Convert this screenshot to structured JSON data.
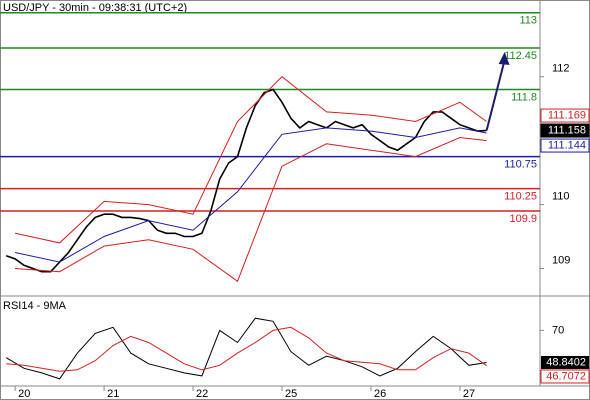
{
  "chart_data": [
    {
      "type": "price",
      "title": "USD/JPY - 30min - 09:38:31 (UTC+2)",
      "ylim": [
        108.57,
        113.2
      ],
      "yticks": [
        109,
        110,
        112
      ],
      "xlim": [
        -0.17,
        5.9
      ],
      "xticks": [
        {
          "value": 0,
          "label": "20"
        },
        {
          "value": 1,
          "label": "21"
        },
        {
          "value": 2,
          "label": "22"
        },
        {
          "value": 3,
          "label": "25"
        },
        {
          "value": 4,
          "label": "26"
        },
        {
          "value": 5,
          "label": "27"
        }
      ],
      "levels": [
        {
          "value": 113,
          "color": "#1f8a1f"
        },
        {
          "value": 112.45,
          "color": "#1f8a1f"
        },
        {
          "value": 111.8,
          "color": "#1f8a1f"
        },
        {
          "value": 110.75,
          "color": "#1c1ca8"
        },
        {
          "value": 110.25,
          "color": "#d42020"
        },
        {
          "value": 109.9,
          "color": "#d42020"
        }
      ],
      "series": [
        {
          "name": "price",
          "color": "#000000",
          "x": [
            -0.1,
            0,
            0.1,
            0.2,
            0.3,
            0.4,
            0.5,
            0.6,
            0.7,
            0.8,
            0.9,
            1.0,
            1.1,
            1.2,
            1.3,
            1.4,
            1.5,
            1.6,
            1.7,
            1.8,
            1.9,
            2.0,
            2.1,
            2.2,
            2.3,
            2.4,
            2.5,
            2.6,
            2.7,
            2.8,
            2.9,
            3.0,
            3.1,
            3.2,
            3.3,
            3.4,
            3.5,
            3.6,
            3.7,
            3.8,
            3.9,
            4.0,
            4.1,
            4.2,
            4.3,
            4.4,
            4.5,
            4.6,
            4.7,
            4.8,
            4.9,
            5.0,
            5.1,
            5.2,
            5.3
          ],
          "values": [
            109.2,
            109.15,
            109.05,
            109.0,
            108.95,
            108.95,
            109.1,
            109.25,
            109.45,
            109.65,
            109.8,
            109.85,
            109.85,
            109.8,
            109.8,
            109.78,
            109.75,
            109.6,
            109.55,
            109.55,
            109.5,
            109.5,
            109.55,
            109.9,
            110.4,
            110.65,
            110.75,
            111.2,
            111.55,
            111.75,
            111.8,
            111.6,
            111.35,
            111.2,
            111.3,
            111.25,
            111.2,
            111.3,
            111.25,
            111.2,
            111.25,
            111.1,
            111.0,
            110.9,
            110.85,
            110.95,
            111.05,
            111.3,
            111.45,
            111.45,
            111.35,
            111.25,
            111.2,
            111.15,
            111.16
          ]
        },
        {
          "name": "upper",
          "color": "#d42020",
          "x": [
            0,
            0.5,
            1,
            1.5,
            2,
            2.5,
            3,
            3.5,
            4,
            4.5,
            5,
            5.3
          ],
          "values": [
            109.55,
            109.4,
            110.05,
            110.0,
            109.85,
            111.3,
            112.0,
            111.45,
            111.4,
            111.3,
            111.6,
            111.3
          ]
        },
        {
          "name": "middle",
          "color": "#1c1ca8",
          "x": [
            0,
            0.5,
            1,
            1.5,
            2,
            2.5,
            3,
            3.5,
            4,
            4.5,
            5,
            5.3
          ],
          "values": [
            109.25,
            109.1,
            109.5,
            109.75,
            109.6,
            110.2,
            111.1,
            111.2,
            111.15,
            111.05,
            111.2,
            111.12
          ]
        },
        {
          "name": "lower",
          "color": "#d42020",
          "x": [
            0,
            0.5,
            1,
            1.5,
            2,
            2.5,
            3,
            3.5,
            4,
            4.5,
            5,
            5.3
          ],
          "values": [
            109.0,
            108.95,
            109.35,
            109.45,
            109.3,
            108.8,
            110.6,
            110.95,
            110.85,
            110.75,
            111.05,
            111.0
          ]
        }
      ],
      "tags": [
        {
          "value": 111.169,
          "color": "#d42020"
        },
        {
          "value": 111.158,
          "color": "#000000"
        },
        {
          "value": 111.144,
          "color": "#1c1ca8"
        }
      ]
    },
    {
      "type": "rsi",
      "title": "RSI14 - 9MA",
      "ylim": [
        34,
        90
      ],
      "yticks": [
        70
      ],
      "xlim": [
        -0.17,
        5.9
      ],
      "series": [
        {
          "name": "rsi",
          "color": "#000000",
          "x": [
            -0.1,
            0.1,
            0.3,
            0.5,
            0.7,
            0.9,
            1.1,
            1.3,
            1.5,
            1.7,
            1.9,
            2.1,
            2.3,
            2.5,
            2.7,
            2.9,
            3.1,
            3.3,
            3.5,
            3.7,
            3.9,
            4.1,
            4.3,
            4.5,
            4.7,
            4.9,
            5.1,
            5.3
          ],
          "values": [
            52,
            45,
            42,
            38,
            55,
            68,
            72,
            55,
            48,
            45,
            42,
            40,
            70,
            62,
            78,
            76,
            56,
            47,
            53,
            50,
            46,
            40,
            45,
            56,
            66,
            58,
            47,
            48.8402
          ]
        },
        {
          "name": "ma",
          "color": "#d42020",
          "x": [
            -0.1,
            0.1,
            0.3,
            0.5,
            0.7,
            0.9,
            1.1,
            1.3,
            1.5,
            1.7,
            1.9,
            2.1,
            2.3,
            2.5,
            2.7,
            2.9,
            3.1,
            3.3,
            3.5,
            3.7,
            3.9,
            4.1,
            4.3,
            4.5,
            4.7,
            4.9,
            5.1,
            5.3
          ],
          "values": [
            48,
            47,
            45,
            43,
            44,
            50,
            60,
            66,
            62,
            55,
            48,
            44,
            47,
            55,
            62,
            70,
            72,
            65,
            55,
            50,
            49,
            48,
            44,
            44,
            52,
            58,
            55,
            46.7072
          ]
        }
      ]
    }
  ]
}
